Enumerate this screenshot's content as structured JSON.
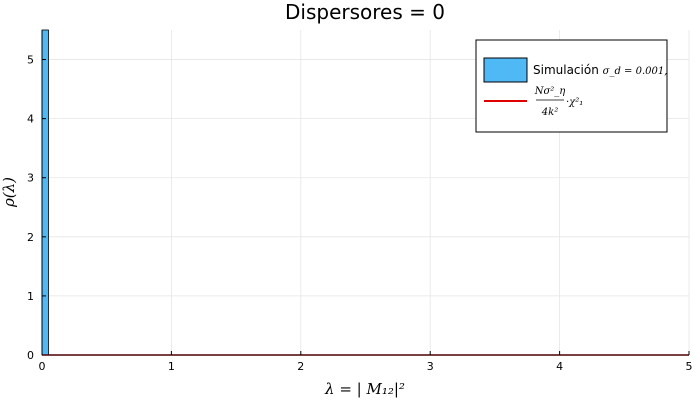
{
  "chart_data": {
    "type": "bar",
    "title": "Dispersores = 0",
    "xlabel": "λ = | M₁₂|²",
    "ylabel": "ρ(λ)",
    "xlim": [
      0,
      5
    ],
    "ylim": [
      0,
      5.5
    ],
    "xticks": [
      "0",
      "1",
      "2",
      "3",
      "4",
      "5"
    ],
    "yticks": [
      "0",
      "1",
      "2",
      "3",
      "4",
      "5"
    ],
    "grid": true,
    "legend_position": "top-right",
    "bars": [
      {
        "x0": 0.0,
        "x1": 0.05,
        "value": 5.5
      }
    ],
    "series": [
      {
        "name": "Simulación σ_d = 0.001,",
        "legend_prefix": "Simulación ",
        "legend_math": "σ_d = 0.001,",
        "kind": "histogram",
        "color": "#4fb9f5"
      },
      {
        "name": "Nσ²_η / 4k² · χ²₁",
        "legend_numerator": "Nσ²_η",
        "legend_denominator": "4k²",
        "legend_tail": "·χ²₁",
        "kind": "line",
        "color": "#e00000",
        "x": [
          0,
          5
        ],
        "y": [
          0,
          0
        ]
      }
    ]
  }
}
